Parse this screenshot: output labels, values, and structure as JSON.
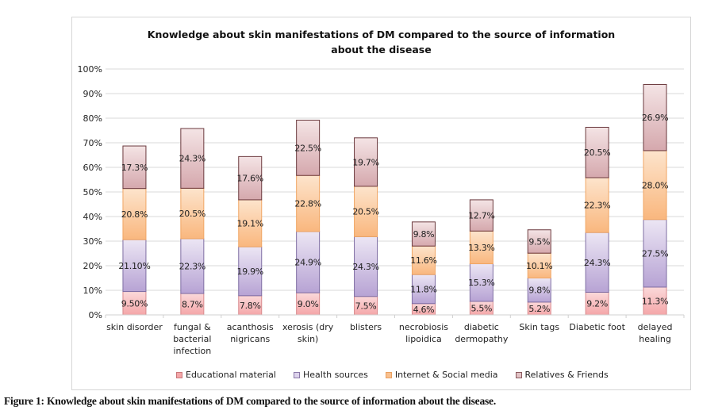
{
  "chart_data": {
    "type": "bar",
    "stacked": true,
    "title": "Knowledge about skin manifestations of DM compared to the source of information about the disease",
    "title_lines": [
      "Knowledge about skin manifestations of DM compared to the source of information",
      "about the disease"
    ],
    "xlabel": "",
    "ylabel": "",
    "ylim": [
      0,
      100
    ],
    "yticks": [
      "0%",
      "10%",
      "20%",
      "30%",
      "40%",
      "50%",
      "60%",
      "70%",
      "80%",
      "90%",
      "100%"
    ],
    "grid": true,
    "legend_position": "bottom",
    "categories": [
      "skin disorder",
      "fungal & bacterial infection",
      "acanthosis nigricans",
      "xerosis (dry skin)",
      "blisters",
      "necrobiosis lipoidica",
      "diabetic dermopathy",
      "Skin tags",
      "Diabetic foot",
      "delayed healing"
    ],
    "category_lines": [
      [
        "skin disorder"
      ],
      [
        "fungal &",
        "bacterial",
        "infection"
      ],
      [
        "acanthosis",
        "nigricans"
      ],
      [
        "xerosis (dry",
        "skin)"
      ],
      [
        "blisters"
      ],
      [
        "necrobiosis",
        "lipoidica"
      ],
      [
        "diabetic",
        "dermopathy"
      ],
      [
        "Skin tags"
      ],
      [
        "Diabetic foot"
      ],
      [
        "delayed",
        "healing"
      ]
    ],
    "series": [
      {
        "name": "Educational material",
        "color": "#f4a6a8",
        "color_light": "#fbd9da",
        "values": [
          9.5,
          8.7,
          7.8,
          9.0,
          7.5,
          4.6,
          5.5,
          5.2,
          9.2,
          11.3
        ],
        "labels": [
          "9.50%",
          "8.7%",
          "7.8%",
          "9.0%",
          "7.5%",
          "4.6%",
          "5.5%",
          "5.2%",
          "9.2%",
          "11.3%"
        ]
      },
      {
        "name": "Health sources",
        "color": "#b7a3d4",
        "color_light": "#ece6f4",
        "values": [
          21.1,
          22.3,
          19.9,
          24.9,
          24.3,
          11.8,
          15.3,
          9.8,
          24.3,
          27.5
        ],
        "labels": [
          "21.10%",
          "22.3%",
          "19.9%",
          "24.9%",
          "24.3%",
          "11.8%",
          "15.3%",
          "9.8%",
          "24.3%",
          "27.5%"
        ]
      },
      {
        "name": "Internet & Social media",
        "color": "#f9b77e",
        "color_light": "#fde4cc",
        "values": [
          20.8,
          20.5,
          19.1,
          22.8,
          20.5,
          11.6,
          13.3,
          10.1,
          22.3,
          28.0
        ],
        "labels": [
          "20.8%",
          "20.5%",
          "19.1%",
          "22.8%",
          "20.5%",
          "11.6%",
          "13.3%",
          "10.1%",
          "22.3%",
          "28.0%"
        ]
      },
      {
        "name": "Relatives & Friends",
        "color": "#d5a8ad",
        "color_light": "#f4e4e5",
        "values": [
          17.3,
          24.3,
          17.6,
          22.5,
          19.7,
          9.8,
          12.7,
          9.5,
          20.5,
          26.9
        ],
        "labels": [
          "17.3%",
          "24.3%",
          "17.6%",
          "22.5%",
          "19.7%",
          "9.8%",
          "12.7%",
          "9.5%",
          "20.5%",
          "26.9%"
        ]
      }
    ]
  },
  "legend": {
    "items": [
      "Educational material",
      "Health sources",
      "Internet & Social media",
      "Relatives & Friends"
    ]
  },
  "caption": "Figure 1: Knowledge about skin manifestations of DM compared to the source of information about the disease."
}
